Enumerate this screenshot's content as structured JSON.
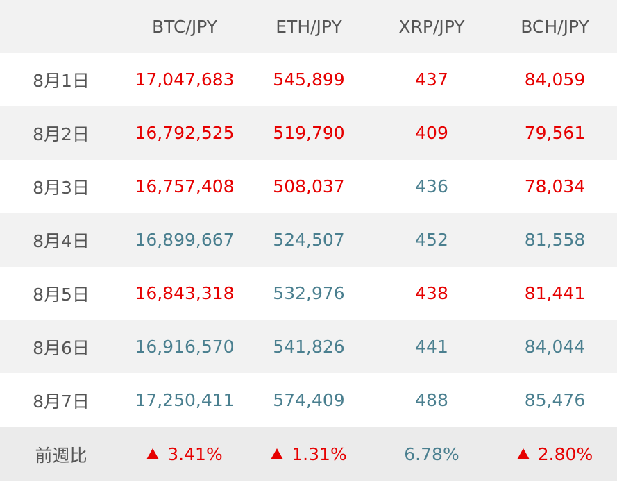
{
  "colors": {
    "up": "#e60000",
    "down": "#4a7f8f",
    "header_bg": "#f2f2f2",
    "label": "#555555"
  },
  "header": {
    "date_label": "",
    "columns": [
      "BTC/JPY",
      "ETH/JPY",
      "XRP/JPY",
      "BCH/JPY"
    ]
  },
  "rows": [
    {
      "date": "8月1日",
      "cells": [
        {
          "value": "17,047,683",
          "trend": "up"
        },
        {
          "value": "545,899",
          "trend": "up"
        },
        {
          "value": "437",
          "trend": "up"
        },
        {
          "value": "84,059",
          "trend": "up"
        }
      ]
    },
    {
      "date": "8月2日",
      "cells": [
        {
          "value": "16,792,525",
          "trend": "up"
        },
        {
          "value": "519,790",
          "trend": "up"
        },
        {
          "value": "409",
          "trend": "up"
        },
        {
          "value": "79,561",
          "trend": "up"
        }
      ]
    },
    {
      "date": "8月3日",
      "cells": [
        {
          "value": "16,757,408",
          "trend": "up"
        },
        {
          "value": "508,037",
          "trend": "up"
        },
        {
          "value": "436",
          "trend": "down"
        },
        {
          "value": "78,034",
          "trend": "up"
        }
      ]
    },
    {
      "date": "8月4日",
      "cells": [
        {
          "value": "16,899,667",
          "trend": "down"
        },
        {
          "value": "524,507",
          "trend": "down"
        },
        {
          "value": "452",
          "trend": "down"
        },
        {
          "value": "81,558",
          "trend": "down"
        }
      ]
    },
    {
      "date": "8月5日",
      "cells": [
        {
          "value": "16,843,318",
          "trend": "up"
        },
        {
          "value": "532,976",
          "trend": "down"
        },
        {
          "value": "438",
          "trend": "up"
        },
        {
          "value": "81,441",
          "trend": "up"
        }
      ]
    },
    {
      "date": "8月6日",
      "cells": [
        {
          "value": "16,916,570",
          "trend": "down"
        },
        {
          "value": "541,826",
          "trend": "down"
        },
        {
          "value": "441",
          "trend": "down"
        },
        {
          "value": "84,044",
          "trend": "down"
        }
      ]
    },
    {
      "date": "8月7日",
      "cells": [
        {
          "value": "17,250,411",
          "trend": "down"
        },
        {
          "value": "574,409",
          "trend": "down"
        },
        {
          "value": "488",
          "trend": "down"
        },
        {
          "value": "85,476",
          "trend": "down"
        }
      ]
    }
  ],
  "summary": {
    "label": "前週比",
    "cells": [
      {
        "value": "3.41%",
        "trend": "up",
        "icon": "triangle-up-icon"
      },
      {
        "value": "1.31%",
        "trend": "up",
        "icon": "triangle-up-icon"
      },
      {
        "value": "6.78%",
        "trend": "down",
        "icon": ""
      },
      {
        "value": "2.80%",
        "trend": "up",
        "icon": "triangle-up-icon"
      }
    ]
  }
}
